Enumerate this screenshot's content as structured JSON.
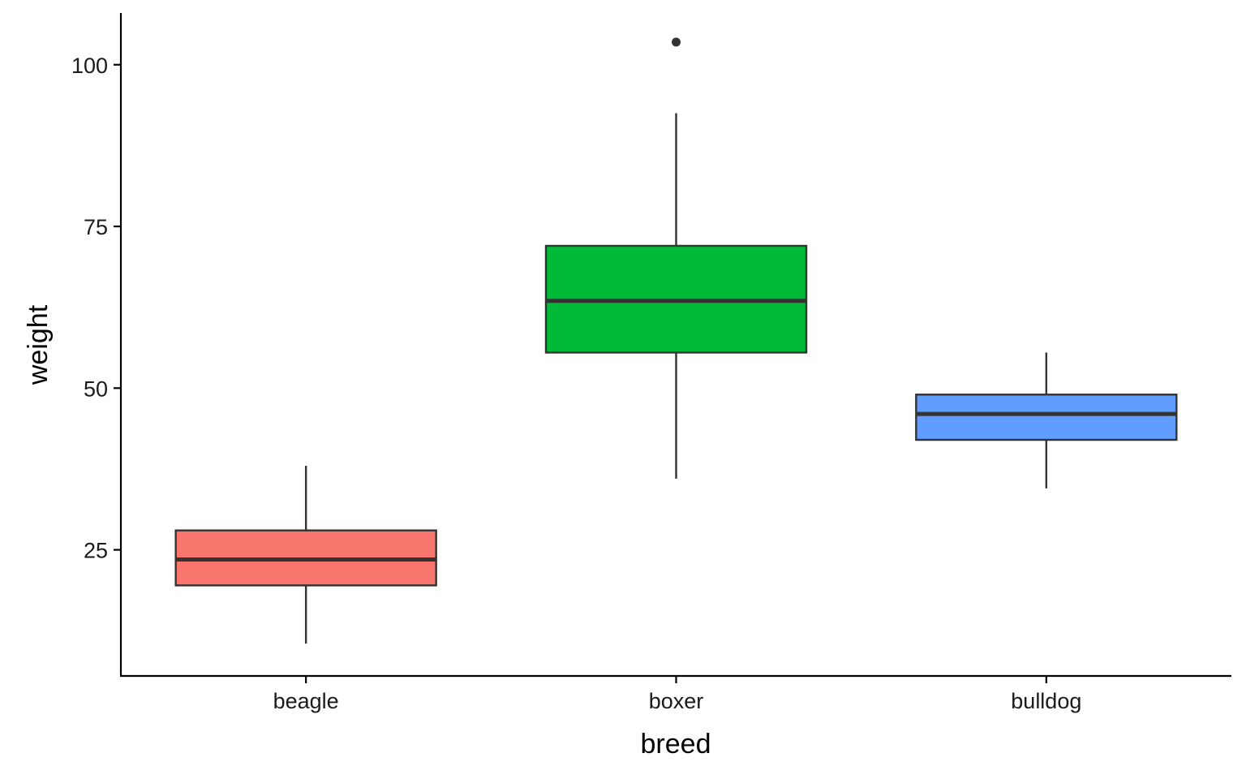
{
  "chart_data": {
    "type": "boxplot",
    "xlabel": "breed",
    "ylabel": "weight",
    "ylim": [
      5.5,
      108
    ],
    "yticks": [
      25,
      50,
      75,
      100
    ],
    "categories": [
      "beagle",
      "boxer",
      "bulldog"
    ],
    "boxes": [
      {
        "category": "beagle",
        "color": "#F8766D",
        "whisker_low": 10.5,
        "q1": 19.5,
        "median": 23.5,
        "q3": 28,
        "whisker_high": 38,
        "outliers": []
      },
      {
        "category": "boxer",
        "color": "#00BA38",
        "whisker_low": 36,
        "q1": 55.5,
        "median": 63.5,
        "q3": 72,
        "whisker_high": 92.5,
        "outliers": [
          103.5
        ]
      },
      {
        "category": "bulldog",
        "color": "#619CFF",
        "whisker_low": 34.5,
        "q1": 42,
        "median": 46,
        "q3": 49,
        "whisker_high": 55.5,
        "outliers": []
      }
    ],
    "grid": false,
    "legend": "none"
  }
}
